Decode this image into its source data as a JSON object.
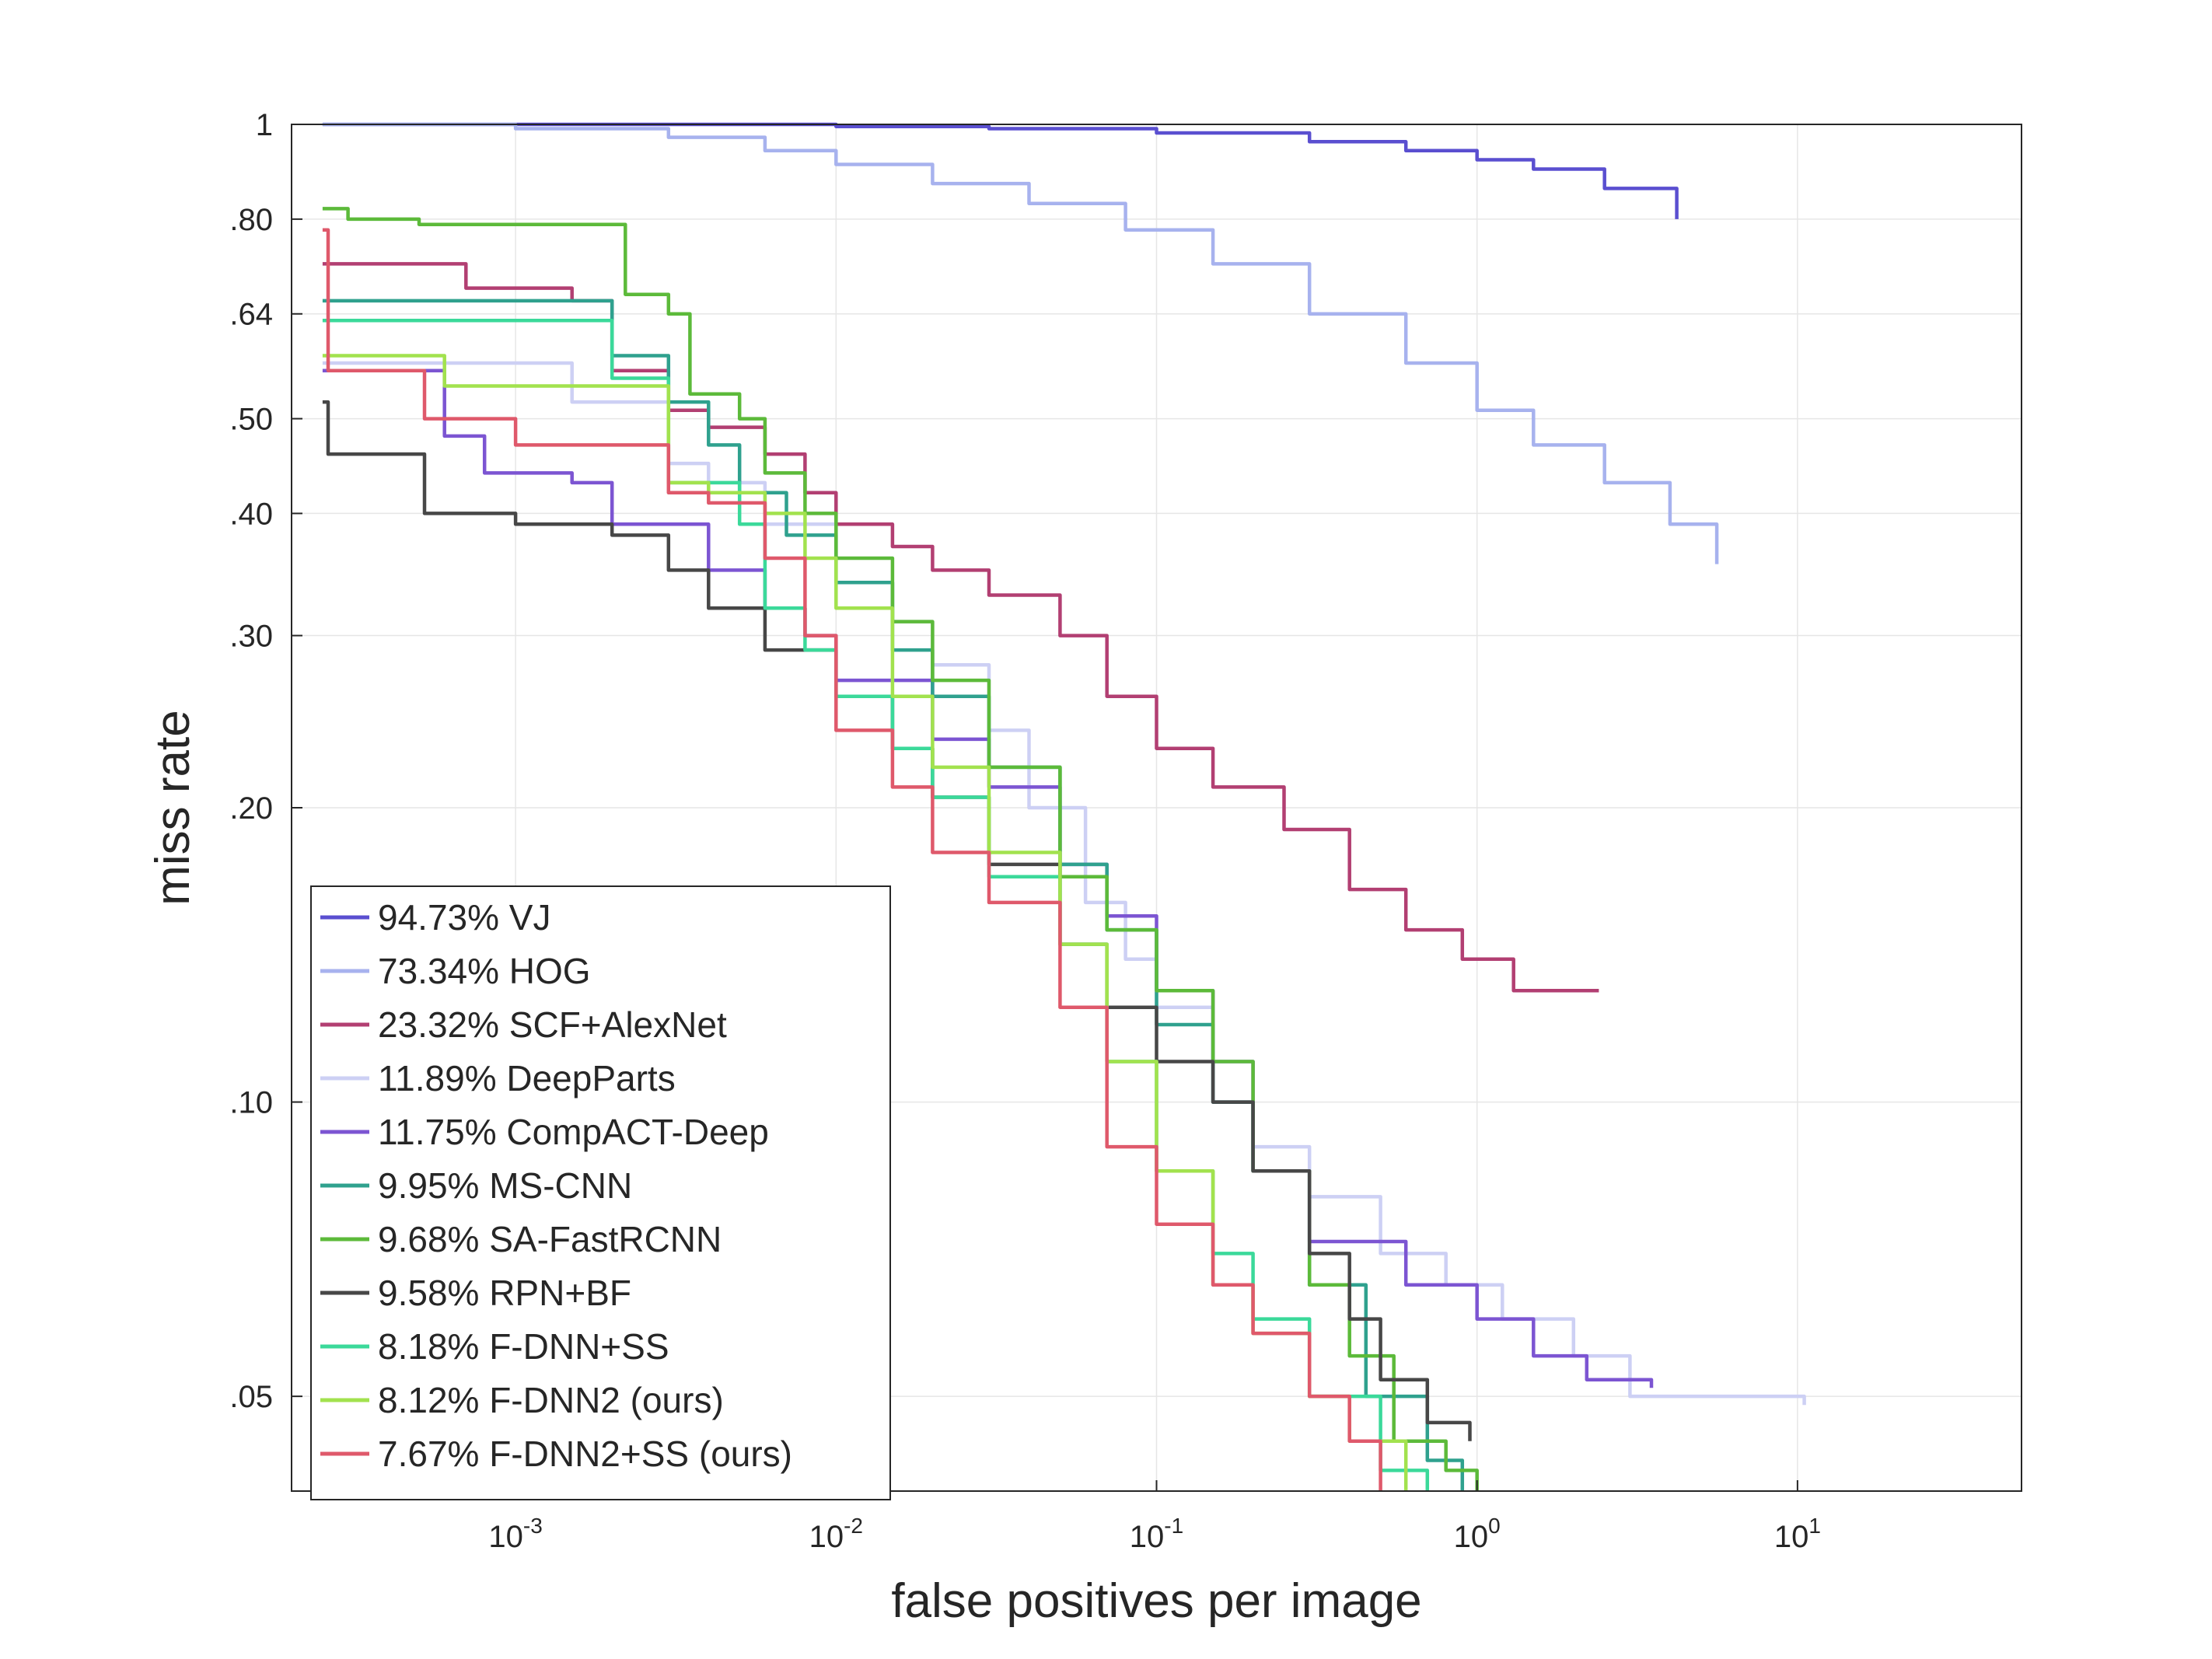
{
  "chart_data": {
    "type": "line",
    "title": "",
    "xlabel": "false positives per image",
    "ylabel": "miss rate",
    "xscale": "log",
    "yscale": "log",
    "xlim": [
      0.0002,
      50
    ],
    "ylim": [
      0.04,
      1
    ],
    "grid": true,
    "legend_position": "bottom-left",
    "x_ticks": [
      {
        "value": 0.001,
        "base": "10",
        "exp": "-3"
      },
      {
        "value": 0.01,
        "base": "10",
        "exp": "-2"
      },
      {
        "value": 0.1,
        "base": "10",
        "exp": "-1"
      },
      {
        "value": 1,
        "base": "10",
        "exp": "0"
      },
      {
        "value": 10,
        "base": "10",
        "exp": "1"
      }
    ],
    "y_ticks": [
      {
        "value": 1,
        "label": "1"
      },
      {
        "value": 0.8,
        "label": ".80"
      },
      {
        "value": 0.64,
        "label": ".64"
      },
      {
        "value": 0.5,
        "label": ".50"
      },
      {
        "value": 0.4,
        "label": ".40"
      },
      {
        "value": 0.3,
        "label": ".30"
      },
      {
        "value": 0.2,
        "label": ".20"
      },
      {
        "value": 0.1,
        "label": ".10"
      },
      {
        "value": 0.05,
        "label": ".05"
      }
    ],
    "series": [
      {
        "name": "94.73% VJ",
        "color": "#5a4fd0",
        "points": [
          [
            0.00025,
            1.0
          ],
          [
            0.003,
            1.0
          ],
          [
            0.01,
            0.995
          ],
          [
            0.03,
            0.99
          ],
          [
            0.1,
            0.98
          ],
          [
            0.3,
            0.96
          ],
          [
            0.6,
            0.94
          ],
          [
            1.0,
            0.92
          ],
          [
            1.5,
            0.9
          ],
          [
            2.5,
            0.86
          ],
          [
            4.2,
            0.8
          ]
        ]
      },
      {
        "name": "73.34% HOG",
        "color": "#a7b2ee",
        "points": [
          [
            0.00025,
            1.0
          ],
          [
            0.001,
            0.99
          ],
          [
            0.003,
            0.97
          ],
          [
            0.006,
            0.94
          ],
          [
            0.01,
            0.91
          ],
          [
            0.02,
            0.87
          ],
          [
            0.04,
            0.83
          ],
          [
            0.08,
            0.78
          ],
          [
            0.15,
            0.72
          ],
          [
            0.3,
            0.64
          ],
          [
            0.6,
            0.57
          ],
          [
            1.0,
            0.51
          ],
          [
            1.5,
            0.47
          ],
          [
            2.5,
            0.43
          ],
          [
            4.0,
            0.39
          ],
          [
            5.6,
            0.355
          ]
        ]
      },
      {
        "name": "23.32% SCF+AlexNet",
        "color": "#b23f72",
        "points": [
          [
            0.00025,
            0.72
          ],
          [
            0.0005,
            0.72
          ],
          [
            0.0007,
            0.68
          ],
          [
            0.0015,
            0.66
          ],
          [
            0.002,
            0.56
          ],
          [
            0.003,
            0.51
          ],
          [
            0.004,
            0.49
          ],
          [
            0.006,
            0.46
          ],
          [
            0.008,
            0.42
          ],
          [
            0.01,
            0.39
          ],
          [
            0.015,
            0.37
          ],
          [
            0.02,
            0.35
          ],
          [
            0.03,
            0.33
          ],
          [
            0.05,
            0.3
          ],
          [
            0.07,
            0.26
          ],
          [
            0.1,
            0.23
          ],
          [
            0.15,
            0.21
          ],
          [
            0.25,
            0.19
          ],
          [
            0.4,
            0.165
          ],
          [
            0.6,
            0.15
          ],
          [
            0.9,
            0.14
          ],
          [
            1.3,
            0.13
          ],
          [
            2.4,
            0.13
          ]
        ]
      },
      {
        "name": "11.89% DeepParts",
        "color": "#cdd0f4",
        "points": [
          [
            0.00025,
            0.57
          ],
          [
            0.001,
            0.57
          ],
          [
            0.0015,
            0.52
          ],
          [
            0.003,
            0.45
          ],
          [
            0.004,
            0.43
          ],
          [
            0.006,
            0.39
          ],
          [
            0.01,
            0.34
          ],
          [
            0.015,
            0.31
          ],
          [
            0.02,
            0.28
          ],
          [
            0.03,
            0.24
          ],
          [
            0.04,
            0.2
          ],
          [
            0.06,
            0.16
          ],
          [
            0.08,
            0.14
          ],
          [
            0.1,
            0.125
          ],
          [
            0.15,
            0.1
          ],
          [
            0.2,
            0.09
          ],
          [
            0.3,
            0.08
          ],
          [
            0.5,
            0.07
          ],
          [
            0.8,
            0.065
          ],
          [
            1.2,
            0.06
          ],
          [
            2.0,
            0.055
          ],
          [
            3.0,
            0.05
          ],
          [
            10.5,
            0.049
          ]
        ]
      },
      {
        "name": "11.75% CompACT-Deep",
        "color": "#7c55d2",
        "points": [
          [
            0.00025,
            0.56
          ],
          [
            0.0005,
            0.56
          ],
          [
            0.0006,
            0.48
          ],
          [
            0.0008,
            0.44
          ],
          [
            0.0015,
            0.43
          ],
          [
            0.002,
            0.39
          ],
          [
            0.004,
            0.35
          ],
          [
            0.006,
            0.32
          ],
          [
            0.008,
            0.3
          ],
          [
            0.01,
            0.27
          ],
          [
            0.02,
            0.235
          ],
          [
            0.03,
            0.21
          ],
          [
            0.05,
            0.175
          ],
          [
            0.07,
            0.155
          ],
          [
            0.1,
            0.13
          ],
          [
            0.15,
            0.11
          ],
          [
            0.2,
            0.085
          ],
          [
            0.3,
            0.072
          ],
          [
            0.6,
            0.065
          ],
          [
            1.0,
            0.06
          ],
          [
            1.5,
            0.055
          ],
          [
            2.2,
            0.052
          ],
          [
            3.5,
            0.051
          ]
        ]
      },
      {
        "name": "9.95% MS-CNN",
        "color": "#2fa18e",
        "points": [
          [
            0.00025,
            0.66
          ],
          [
            0.001,
            0.66
          ],
          [
            0.002,
            0.58
          ],
          [
            0.003,
            0.52
          ],
          [
            0.004,
            0.47
          ],
          [
            0.005,
            0.42
          ],
          [
            0.007,
            0.38
          ],
          [
            0.01,
            0.34
          ],
          [
            0.015,
            0.29
          ],
          [
            0.02,
            0.26
          ],
          [
            0.03,
            0.22
          ],
          [
            0.05,
            0.175
          ],
          [
            0.07,
            0.15
          ],
          [
            0.1,
            0.12
          ],
          [
            0.15,
            0.1
          ],
          [
            0.2,
            0.085
          ],
          [
            0.3,
            0.065
          ],
          [
            0.45,
            0.05
          ],
          [
            0.7,
            0.043
          ],
          [
            0.9,
            0.04
          ]
        ]
      },
      {
        "name": "9.68% SA-FastRCNN",
        "color": "#5cba3a",
        "points": [
          [
            0.00025,
            0.82
          ],
          [
            0.0003,
            0.8
          ],
          [
            0.0005,
            0.79
          ],
          [
            0.002,
            0.79
          ],
          [
            0.0022,
            0.67
          ],
          [
            0.003,
            0.64
          ],
          [
            0.0035,
            0.53
          ],
          [
            0.005,
            0.5
          ],
          [
            0.006,
            0.44
          ],
          [
            0.008,
            0.4
          ],
          [
            0.01,
            0.36
          ],
          [
            0.015,
            0.31
          ],
          [
            0.02,
            0.27
          ],
          [
            0.03,
            0.22
          ],
          [
            0.05,
            0.17
          ],
          [
            0.07,
            0.15
          ],
          [
            0.1,
            0.13
          ],
          [
            0.15,
            0.11
          ],
          [
            0.2,
            0.085
          ],
          [
            0.3,
            0.065
          ],
          [
            0.4,
            0.055
          ],
          [
            0.55,
            0.045
          ],
          [
            0.8,
            0.042
          ],
          [
            1.0,
            0.04
          ]
        ]
      },
      {
        "name": "9.58% RPN+BF",
        "color": "#474747",
        "points": [
          [
            0.00025,
            0.52
          ],
          [
            0.00026,
            0.46
          ],
          [
            0.0005,
            0.46
          ],
          [
            0.00052,
            0.4
          ],
          [
            0.001,
            0.39
          ],
          [
            0.002,
            0.38
          ],
          [
            0.003,
            0.35
          ],
          [
            0.004,
            0.32
          ],
          [
            0.006,
            0.29
          ],
          [
            0.01,
            0.26
          ],
          [
            0.015,
            0.23
          ],
          [
            0.02,
            0.205
          ],
          [
            0.03,
            0.175
          ],
          [
            0.05,
            0.145
          ],
          [
            0.07,
            0.125
          ],
          [
            0.1,
            0.11
          ],
          [
            0.15,
            0.1
          ],
          [
            0.2,
            0.085
          ],
          [
            0.3,
            0.07
          ],
          [
            0.4,
            0.06
          ],
          [
            0.5,
            0.052
          ],
          [
            0.7,
            0.047
          ],
          [
            0.95,
            0.045
          ]
        ]
      },
      {
        "name": "8.18% F-DNN+SS",
        "color": "#3bd99a",
        "points": [
          [
            0.00025,
            0.63
          ],
          [
            0.001,
            0.63
          ],
          [
            0.002,
            0.55
          ],
          [
            0.003,
            0.43
          ],
          [
            0.005,
            0.39
          ],
          [
            0.006,
            0.32
          ],
          [
            0.008,
            0.29
          ],
          [
            0.01,
            0.26
          ],
          [
            0.015,
            0.23
          ],
          [
            0.02,
            0.205
          ],
          [
            0.03,
            0.17
          ],
          [
            0.05,
            0.145
          ],
          [
            0.07,
            0.11
          ],
          [
            0.1,
            0.085
          ],
          [
            0.15,
            0.07
          ],
          [
            0.2,
            0.06
          ],
          [
            0.3,
            0.05
          ],
          [
            0.5,
            0.042
          ],
          [
            0.7,
            0.04
          ]
        ]
      },
      {
        "name": "8.12% F-DNN2 (ours)",
        "color": "#a2e24e",
        "points": [
          [
            0.00025,
            0.58
          ],
          [
            0.0005,
            0.58
          ],
          [
            0.0006,
            0.54
          ],
          [
            0.002,
            0.54
          ],
          [
            0.003,
            0.43
          ],
          [
            0.004,
            0.42
          ],
          [
            0.006,
            0.4
          ],
          [
            0.008,
            0.36
          ],
          [
            0.01,
            0.32
          ],
          [
            0.015,
            0.26
          ],
          [
            0.02,
            0.22
          ],
          [
            0.03,
            0.18
          ],
          [
            0.05,
            0.145
          ],
          [
            0.07,
            0.11
          ],
          [
            0.1,
            0.085
          ],
          [
            0.15,
            0.065
          ],
          [
            0.2,
            0.058
          ],
          [
            0.3,
            0.05
          ],
          [
            0.4,
            0.045
          ],
          [
            0.6,
            0.04
          ]
        ]
      },
      {
        "name": "7.67% F-DNN2+SS (ours)",
        "color": "#df596b",
        "points": [
          [
            0.00025,
            0.78
          ],
          [
            0.00026,
            0.56
          ],
          [
            0.0005,
            0.56
          ],
          [
            0.00052,
            0.5
          ],
          [
            0.001,
            0.47
          ],
          [
            0.002,
            0.47
          ],
          [
            0.003,
            0.42
          ],
          [
            0.004,
            0.41
          ],
          [
            0.006,
            0.36
          ],
          [
            0.008,
            0.3
          ],
          [
            0.01,
            0.24
          ],
          [
            0.015,
            0.21
          ],
          [
            0.02,
            0.18
          ],
          [
            0.03,
            0.16
          ],
          [
            0.05,
            0.125
          ],
          [
            0.07,
            0.09
          ],
          [
            0.1,
            0.075
          ],
          [
            0.15,
            0.065
          ],
          [
            0.2,
            0.058
          ],
          [
            0.3,
            0.05
          ],
          [
            0.4,
            0.045
          ],
          [
            0.5,
            0.04
          ]
        ]
      }
    ]
  }
}
